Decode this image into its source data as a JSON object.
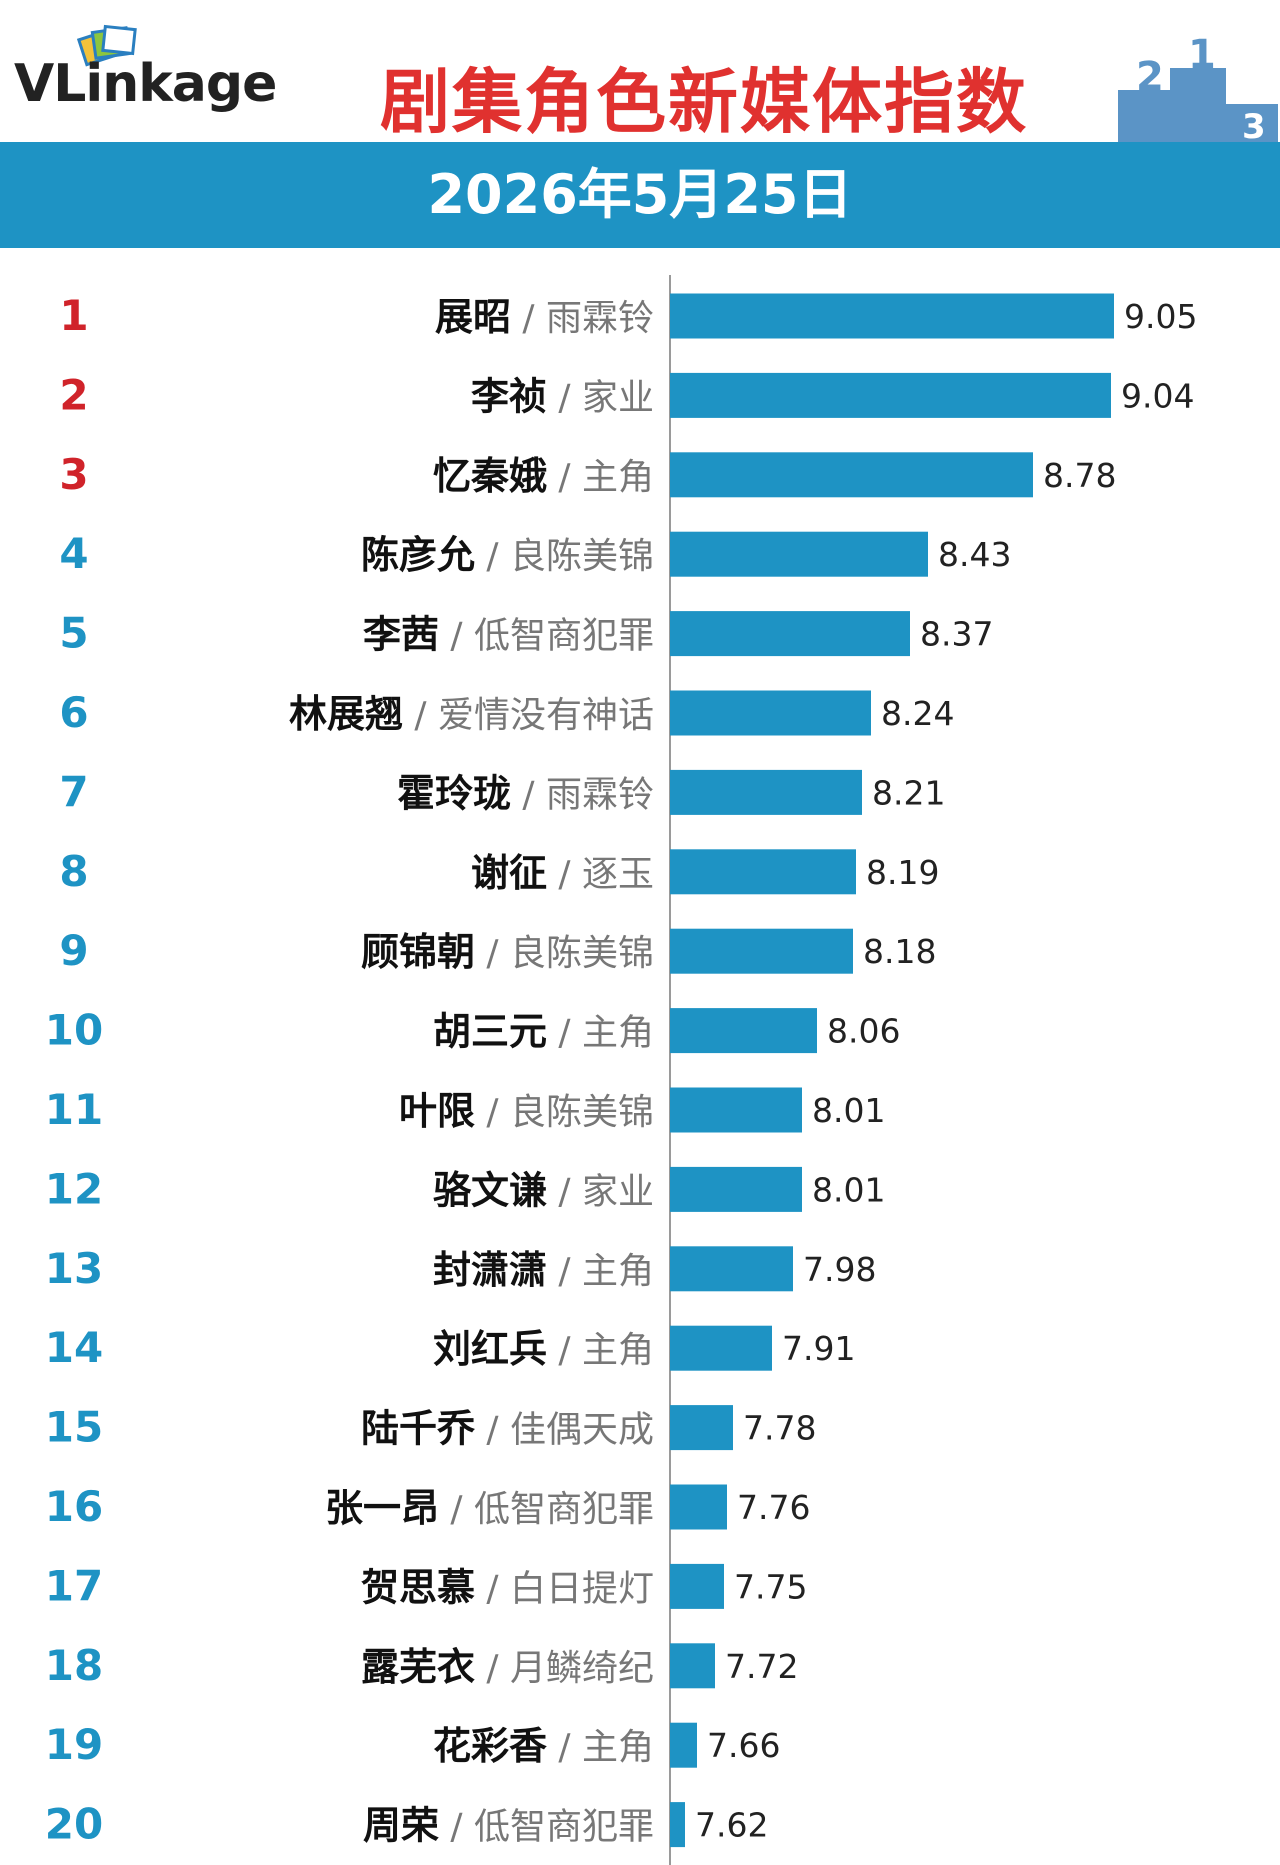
{
  "header": {
    "logo": "VLinkage",
    "title": "剧集角色新媒体指数",
    "date": "2026年5月25日",
    "podium_numbers": [
      "2",
      "1",
      "3"
    ]
  },
  "colors": {
    "bar": "#1e93c4",
    "rank_top3": "#d0232a",
    "rank_rest": "#1e93c4",
    "title": "#e0312f"
  },
  "chart_data": {
    "type": "bar",
    "orientation": "horizontal",
    "title": "剧集角色新媒体指数",
    "ranks": [
      "1",
      "2",
      "3",
      "4",
      "5",
      "6",
      "7",
      "8",
      "9",
      "10",
      "11",
      "12",
      "13",
      "14",
      "15",
      "16",
      "17",
      "18",
      "19",
      "20"
    ],
    "characters": [
      "展昭",
      "李祯",
      "忆秦娥",
      "陈彦允",
      "李茜",
      "林展翘",
      "霍玲珑",
      "谢征",
      "顾锦朝",
      "胡三元",
      "叶限",
      "骆文谦",
      "封潇潇",
      "刘红兵",
      "陆千乔",
      "张一昂",
      "贺思慕",
      "露芜衣",
      "花彩香",
      "周荣"
    ],
    "dramas": [
      "雨霖铃",
      "家业",
      "主角",
      "良陈美锦",
      "低智商犯罪",
      "爱情没有神话",
      "雨霖铃",
      "逐玉",
      "良陈美锦",
      "主角",
      "良陈美锦",
      "家业",
      "主角",
      "主角",
      "佳偶天成",
      "低智商犯罪",
      "白日提灯",
      "月鳞绮纪",
      "主角",
      "低智商犯罪"
    ],
    "values": [
      9.05,
      9.04,
      8.78,
      8.43,
      8.37,
      8.24,
      8.21,
      8.19,
      8.18,
      8.06,
      8.01,
      8.01,
      7.98,
      7.91,
      7.78,
      7.76,
      7.75,
      7.72,
      7.66,
      7.62
    ],
    "xlim": [
      7.57,
      9.05
    ]
  }
}
